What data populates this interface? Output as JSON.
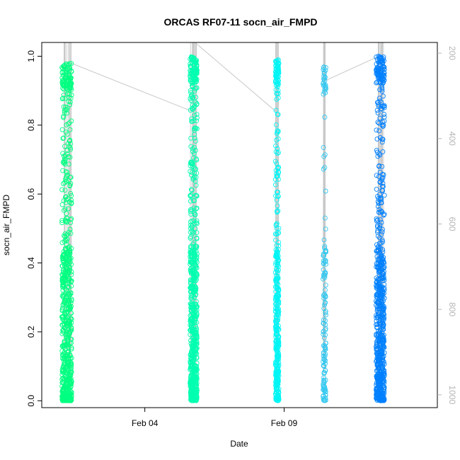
{
  "chart_data": {
    "type": "scatter",
    "title": "ORCAS RF07-11 socn_air_FMPD",
    "xlabel": "Date",
    "ylabel": "socn_air_FMPD",
    "x_unit": "days in February (day of month, fractional)",
    "xlim": [
      0.3,
      14.5
    ],
    "ylim": [
      -0.02,
      1.04
    ],
    "x_ticks": [
      {
        "value": 4,
        "label": "Feb 04"
      },
      {
        "value": 9,
        "label": "Feb 09"
      }
    ],
    "y_ticks": [
      {
        "value": 0.0,
        "label": "0.0"
      },
      {
        "value": 0.2,
        "label": "0.2"
      },
      {
        "value": 0.4,
        "label": "0.4"
      },
      {
        "value": 0.6,
        "label": "0.6"
      },
      {
        "value": 0.8,
        "label": "0.8"
      },
      {
        "value": 1.0,
        "label": "1.0"
      }
    ],
    "right_axis": {
      "description": "secondary axis (pressure-like), reversed, drawn in light gray",
      "ylim": [
        1030,
        175
      ],
      "ticks": [
        {
          "value": 200,
          "label": "200"
        },
        {
          "value": 400,
          "label": "400"
        },
        {
          "value": 600,
          "label": "600"
        },
        {
          "value": 800,
          "label": "800"
        },
        {
          "value": 1000,
          "label": "1000"
        }
      ]
    },
    "grid": false,
    "series": [
      {
        "color": "#00ff80",
        "x_center": 1.2,
        "x_width": 0.35,
        "density": "very high",
        "y_range": [
          0.0,
          0.98
        ]
      },
      {
        "color": "#00ffb0",
        "x_center": 5.75,
        "x_width": 0.25,
        "density": "very high",
        "y_range": [
          0.0,
          1.0
        ]
      },
      {
        "color": "#00f5f5",
        "x_center": 8.75,
        "x_width": 0.12,
        "density": "high",
        "y_range": [
          0.0,
          0.99
        ]
      },
      {
        "color": "#33c8f0",
        "x_center": 10.45,
        "x_width": 0.1,
        "density": "medium",
        "y_range": [
          0.0,
          0.97
        ]
      },
      {
        "color": "#0080ff",
        "x_center": 12.45,
        "x_width": 0.3,
        "density": "very high",
        "y_range": [
          0.0,
          1.0
        ]
      }
    ],
    "trace_line_color": "#c8c8c8"
  }
}
